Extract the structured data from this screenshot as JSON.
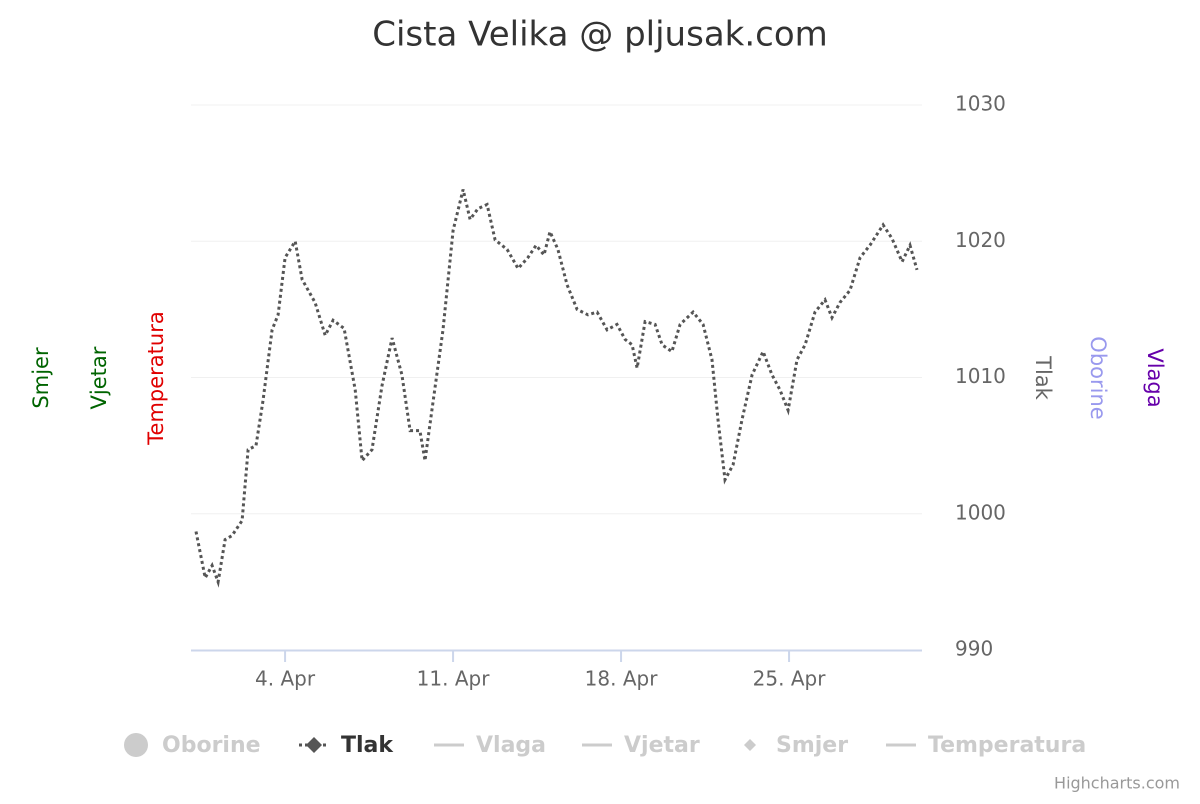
{
  "chart_data": {
    "type": "line",
    "title": "Cista Velika @ pljusak.com",
    "credits": "Highcharts.com",
    "x": [
      0.29,
      0.67,
      0.96,
      1.21,
      1.5,
      1.79,
      2.21,
      2.46,
      2.79,
      3.08,
      3.46,
      3.71,
      4.0,
      4.42,
      4.71,
      5.25,
      5.67,
      6.0,
      6.46,
      6.92,
      7.21,
      7.62,
      8.04,
      8.46,
      8.87,
      9.21,
      9.62,
      9.83,
      10.12,
      10.58,
      11.0,
      11.42,
      11.71,
      12.04,
      12.42,
      12.75,
      13.25,
      13.71,
      14.12,
      14.46,
      14.79,
      15.04,
      15.37,
      15.75,
      16.17,
      16.62,
      17.0,
      17.42,
      17.83,
      18.17,
      18.46,
      18.67,
      19.0,
      19.42,
      19.71,
      20.12,
      20.46,
      21.0,
      21.42,
      21.79,
      22.04,
      22.33,
      22.67,
      23.04,
      23.46,
      23.92,
      24.29,
      24.62,
      24.96,
      25.33,
      25.67,
      26.08,
      26.5,
      26.79,
      27.12,
      27.54,
      27.96,
      28.37,
      28.92,
      29.29,
      29.71,
      30.04,
      30.33
    ],
    "series": [
      {
        "name": "Oborine",
        "color": "#cccccc",
        "symbol": "circle",
        "visible": false
      },
      {
        "name": "Tlak",
        "color": "#555555",
        "symbol": "line-diamond",
        "visible": true,
        "values": [
          998.7,
          995.3,
          996.2,
          995.0,
          998.1,
          998.4,
          999.5,
          1004.7,
          1005.0,
          1008.3,
          1013.5,
          1014.6,
          1018.8,
          1020.0,
          1017.2,
          1015.5,
          1013.1,
          1014.2,
          1013.6,
          1009.1,
          1003.9,
          1004.7,
          1009.4,
          1012.9,
          1010.2,
          1006.1,
          1006.1,
          1003.9,
          1007.6,
          1013.5,
          1020.8,
          1023.8,
          1021.6,
          1022.4,
          1022.7,
          1020.1,
          1019.4,
          1018.0,
          1018.8,
          1019.7,
          1019.0,
          1020.7,
          1019.4,
          1016.8,
          1015.0,
          1014.6,
          1014.8,
          1013.5,
          1013.9,
          1012.8,
          1012.4,
          1010.7,
          1014.1,
          1013.9,
          1012.4,
          1011.9,
          1013.9,
          1014.8,
          1013.9,
          1011.3,
          1006.9,
          1002.5,
          1003.6,
          1006.9,
          1010.2,
          1011.9,
          1010.2,
          1009.1,
          1007.6,
          1011.3,
          1012.4,
          1014.8,
          1015.7,
          1014.4,
          1015.5,
          1016.4,
          1018.8,
          1019.7,
          1021.2,
          1020.2,
          1018.5,
          1019.7,
          1017.9
        ]
      },
      {
        "name": "Vlaga",
        "color": "#cccccc",
        "symbol": "line",
        "visible": false
      },
      {
        "name": "Vjetar",
        "color": "#cccccc",
        "symbol": "line",
        "visible": false
      },
      {
        "name": "Smjer",
        "color": "#cccccc",
        "symbol": "diamond",
        "visible": false
      },
      {
        "name": "Temperatura",
        "color": "#cccccc",
        "symbol": "line",
        "visible": false
      }
    ],
    "xlim": [
      0.08,
      30.54
    ],
    "xticks": [
      {
        "value": 4,
        "label": "4. Apr"
      },
      {
        "value": 11,
        "label": "11. Apr"
      },
      {
        "value": 18,
        "label": "18. Apr"
      },
      {
        "value": 25,
        "label": "25. Apr"
      }
    ],
    "ylim": [
      990,
      1030
    ],
    "yticks": [
      990,
      1000,
      1010,
      1020,
      1030
    ],
    "y_axis_side": "right",
    "grid": true,
    "legend_position": "bottom",
    "axis_titles": [
      {
        "text": "Smjer",
        "color": "#006400",
        "side": "left"
      },
      {
        "text": "Vjetar",
        "color": "#006400",
        "side": "left"
      },
      {
        "text": "Temperatura",
        "color": "#e00000",
        "side": "left"
      },
      {
        "text": "Tlak",
        "color": "#666666",
        "side": "right"
      },
      {
        "text": "Oborine",
        "color": "#9999ee",
        "side": "right"
      },
      {
        "text": "Vlaga",
        "color": "#6600aa",
        "side": "right"
      }
    ]
  }
}
